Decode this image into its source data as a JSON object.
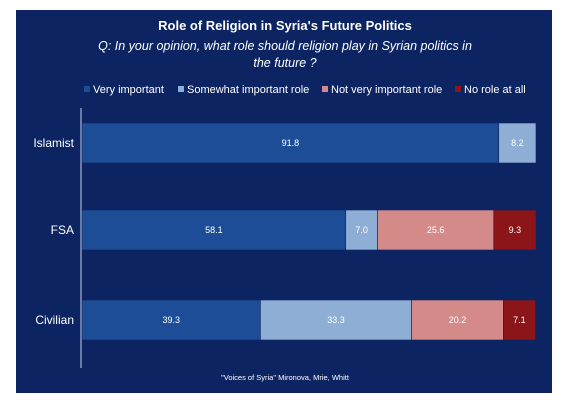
{
  "chart_data": {
    "type": "bar",
    "orientation": "horizontal",
    "stacked": true,
    "title": "Role of Religion in Syria's Future Politics",
    "subtitle_line1": "Q: In your opinion, what role should religion play in Syrian politics in",
    "subtitle_line2": "the future ?",
    "categories": [
      "Islamist",
      "FSA",
      "Civilian"
    ],
    "series": [
      {
        "name": "Very important",
        "color": "#1c4d96",
        "values": [
          91.8,
          58.1,
          39.3
        ]
      },
      {
        "name": "Somewhat important role",
        "color": "#8faed6",
        "values": [
          8.2,
          7.0,
          33.3
        ]
      },
      {
        "name": "Not very important role",
        "color": "#d48a89",
        "values": [
          0,
          25.6,
          20.2
        ]
      },
      {
        "name": "No role at all",
        "color": "#8b1519",
        "values": [
          0,
          9.3,
          7.1
        ]
      }
    ],
    "xlim": [
      0,
      100
    ],
    "legend_position": "top",
    "grid": false,
    "source": "\"Voices of Syria\"  Mironova, Mrie, Whitt"
  },
  "colors": {
    "background": "#0c2462",
    "text": "#ffffff"
  }
}
